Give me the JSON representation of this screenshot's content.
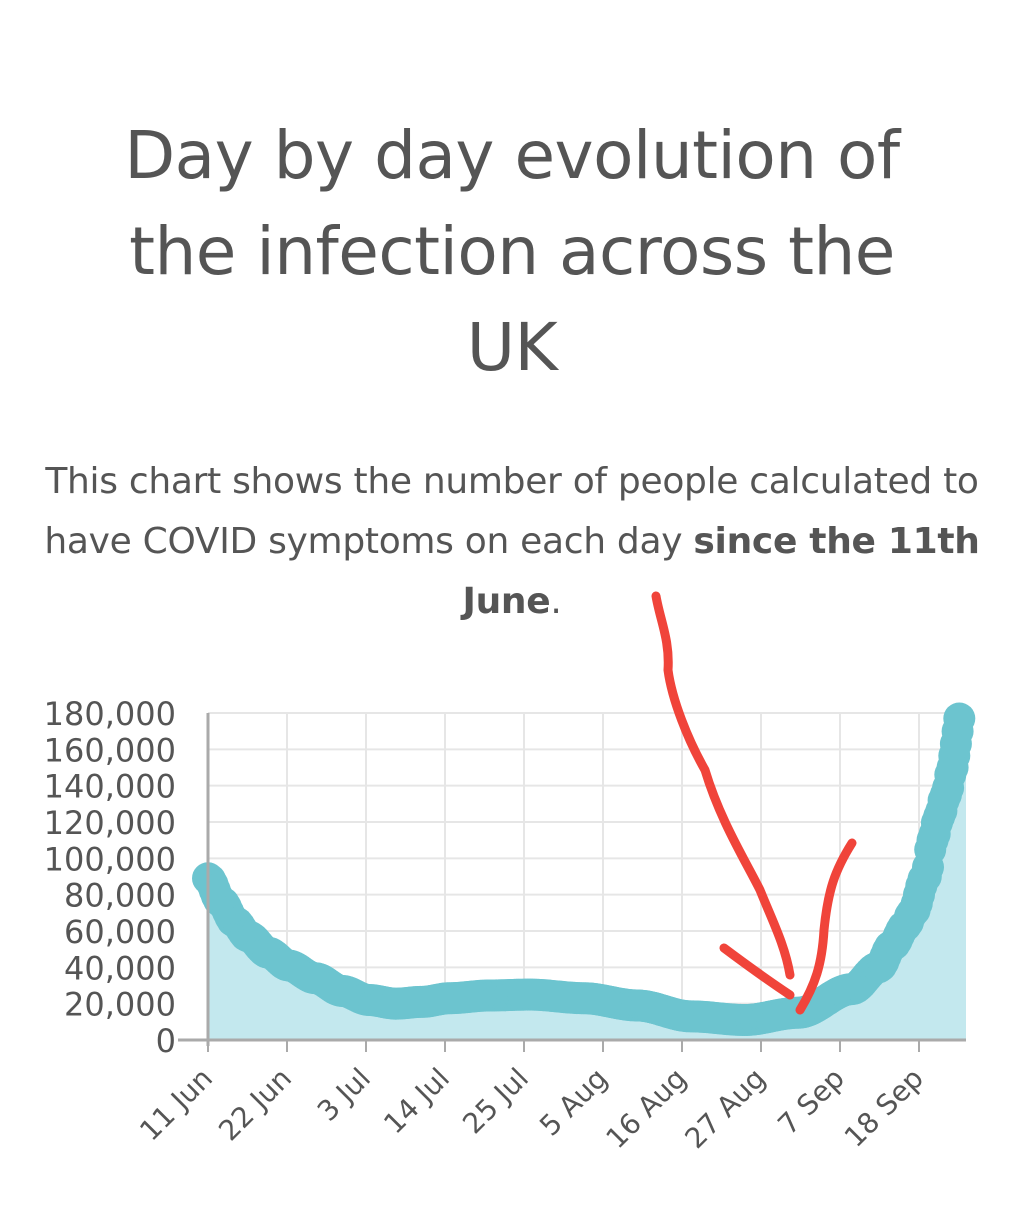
{
  "title": "Day by day evolution of the infection across the UK",
  "description": {
    "prefix": "This chart shows the number of people calculated to have COVID symptoms on each day ",
    "bold": "since the 11th June",
    "suffix": "."
  },
  "colors": {
    "line": "#6cc4cf",
    "area": "#c3e8ee",
    "grid": "#e6e6e6",
    "axis": "#aaaaaa",
    "text": "#555555",
    "annotation": "#f0443a"
  },
  "chart_data": {
    "type": "area",
    "x_tick_labels": [
      "11 Jun",
      "22 Jun",
      "3 Jul",
      "14 Jul",
      "25 Jul",
      "5 Aug",
      "16 Aug",
      "27 Aug",
      "7 Sep",
      "18 Sep"
    ],
    "y_tick_labels": [
      "0",
      "20,000",
      "40,000",
      "60,000",
      "80,000",
      "100,000",
      "120,000",
      "140,000",
      "160,000",
      "180,000"
    ],
    "ylim": [
      0,
      180000
    ],
    "x_day_range": [
      0,
      105
    ],
    "series": [
      {
        "name": "People with COVID symptoms",
        "x_day": [
          0,
          2,
          4,
          6,
          9,
          12,
          16,
          20,
          24,
          28,
          32,
          36,
          42,
          48,
          56,
          64,
          72,
          80,
          88,
          96,
          100,
          102,
          104,
          105
        ],
        "values": [
          89000,
          76000,
          65000,
          57000,
          48000,
          41000,
          34000,
          27000,
          22000,
          20000,
          21000,
          23000,
          24500,
          25000,
          23000,
          19000,
          13000,
          11000,
          15000,
          28000,
          40000,
          52000,
          63000,
          70000
        ]
      }
    ],
    "end_points_tail": [
      {
        "x_day": 107,
        "value": 90000
      },
      {
        "x_day": 108,
        "value": 110000
      },
      {
        "x_day": 109,
        "value": 123000
      },
      {
        "x_day": 110,
        "value": 135000
      },
      {
        "x_day": 111,
        "value": 150000
      },
      {
        "x_day": 111.5,
        "value": 163000
      },
      {
        "x_day": 112,
        "value": 177000
      }
    ],
    "annotation": "hand-drawn red arrow pointing to the early-September minimum"
  }
}
